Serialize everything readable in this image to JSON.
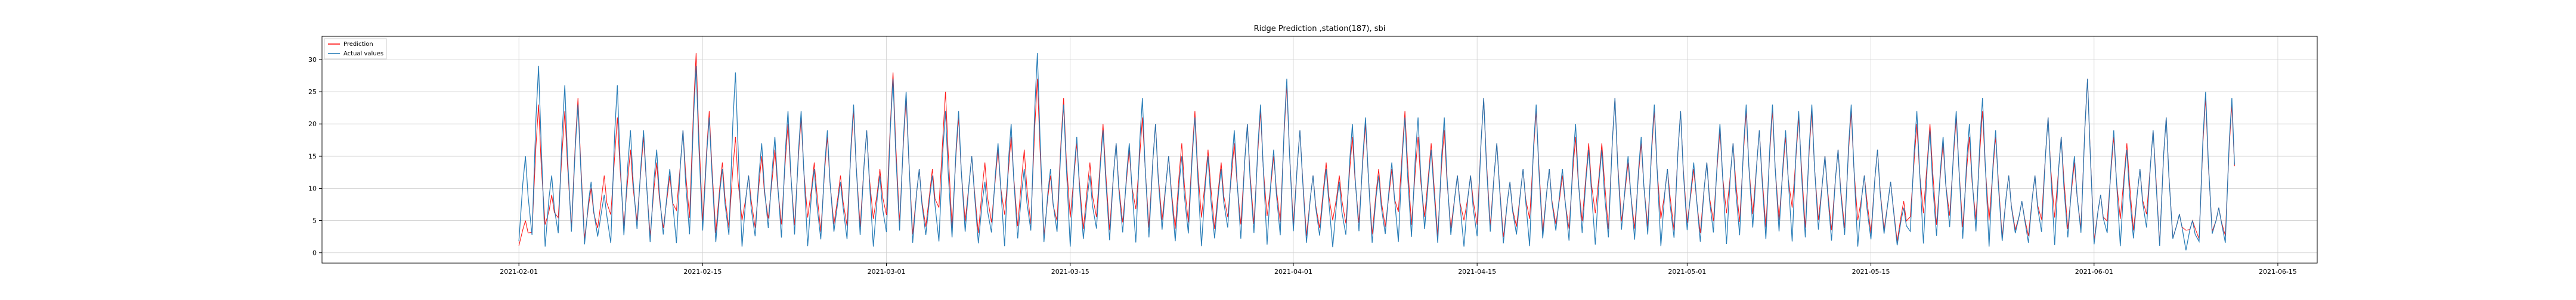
{
  "chart_data": {
    "type": "line",
    "title": "Ridge Prediction ,station(187), sbi",
    "xlabel": "",
    "ylabel": "",
    "xlim": [
      "2021-01-17",
      "2021-06-18"
    ],
    "ylim": [
      -1.6,
      33.6
    ],
    "grid": true,
    "legend_placement": "top-left",
    "x_ticks": [
      "2021-02-01",
      "2021-02-15",
      "2021-03-01",
      "2021-03-15",
      "2021-04-01",
      "2021-04-15",
      "2021-05-01",
      "2021-05-15",
      "2021-06-01",
      "2021-06-15"
    ],
    "y_ticks": [
      0,
      5,
      10,
      15,
      20,
      25,
      30
    ],
    "x_start": "2021-02-01",
    "x_end": "2021-06-11",
    "series": [
      {
        "name": "Prediction",
        "color": "#ff0000",
        "daily_peaks": [
          5,
          23,
          9,
          22,
          24,
          10,
          12,
          21,
          16,
          18,
          14,
          12,
          19,
          31,
          22,
          14,
          18,
          12,
          15,
          16,
          20,
          21,
          14,
          18,
          12,
          22,
          19,
          13,
          28,
          24,
          13,
          13,
          25,
          21,
          15,
          14,
          16,
          18,
          16,
          27,
          12,
          24,
          17,
          14,
          20,
          17,
          16,
          21,
          20,
          15,
          17,
          22,
          16,
          14,
          17,
          20,
          22,
          15,
          26,
          19,
          12,
          14,
          12,
          18,
          20,
          13,
          13,
          22,
          18,
          17,
          19,
          12,
          12,
          24,
          17,
          11,
          13,
          22,
          13,
          12,
          18,
          17,
          17,
          24,
          14,
          17,
          22,
          13,
          22,
          13,
          14,
          19,
          17,
          22,
          19,
          22,
          18,
          21,
          22,
          15,
          16,
          22,
          12,
          16,
          11,
          8,
          20,
          20,
          17,
          21,
          18,
          22,
          18,
          12,
          8,
          12,
          21,
          18,
          14,
          27,
          9,
          18,
          17,
          13,
          19,
          21,
          6,
          5,
          24,
          7,
          23,
          12,
          8,
          23,
          23,
          17,
          5,
          24,
          15,
          12,
          17,
          12,
          28,
          14,
          26,
          13,
          21,
          21,
          14,
          12,
          21,
          11,
          13,
          26,
          12,
          16,
          11,
          12,
          24,
          20,
          5,
          26,
          17,
          18,
          13,
          13,
          21,
          14,
          26,
          12,
          15,
          7,
          12,
          16,
          18,
          24,
          14,
          17,
          19,
          18,
          10,
          12,
          15,
          17,
          15,
          18,
          16,
          19,
          17,
          16,
          20,
          17,
          21,
          15,
          22,
          17,
          15,
          17,
          20,
          17,
          17,
          19,
          19,
          20,
          20,
          17,
          17,
          19,
          20,
          13,
          17,
          23,
          18,
          20,
          27,
          14,
          12,
          20,
          20,
          17,
          13,
          13,
          10,
          23,
          12,
          10,
          6,
          21,
          17,
          10,
          27,
          9
        ]
      },
      {
        "name": "Actual values",
        "color": "#1f77b4",
        "daily_peaks": [
          15,
          29,
          12,
          26,
          23,
          11,
          9,
          26,
          19,
          19,
          16,
          13,
          19,
          29,
          21,
          13,
          28,
          12,
          17,
          18,
          22,
          22,
          13,
          19,
          11,
          23,
          19,
          12,
          27,
          25,
          13,
          12,
          22,
          22,
          15,
          11,
          17,
          20,
          13,
          31,
          13,
          23,
          18,
          12,
          19,
          17,
          17,
          24,
          20,
          15,
          15,
          21,
          15,
          13,
          19,
          20,
          23,
          16,
          27,
          19,
          12,
          13,
          11,
          20,
          21,
          12,
          14,
          21,
          21,
          16,
          21,
          12,
          12,
          24,
          17,
          11,
          13,
          23,
          13,
          13,
          20,
          16,
          16,
          24,
          15,
          18,
          23,
          13,
          22,
          14,
          14,
          20,
          17,
          23,
          19,
          23,
          19,
          22,
          23,
          15,
          16,
          23,
          12,
          16,
          11,
          7,
          22,
          19,
          18,
          22,
          20,
          24,
          19,
          12,
          8,
          12,
          21,
          18,
          15,
          27,
          9,
          19,
          16,
          13,
          19,
          21,
          6,
          5,
          25,
          7,
          24,
          12,
          8,
          24,
          24,
          17,
          5,
          25,
          16,
          12,
          17,
          12,
          28,
          15,
          26,
          14,
          21,
          23,
          13,
          12,
          23,
          12,
          14,
          27,
          12,
          16,
          11,
          12,
          25,
          20,
          5,
          28,
          17,
          19,
          13,
          14,
          21,
          14,
          28,
          12,
          16,
          7,
          12,
          16,
          18,
          24,
          15,
          17,
          20,
          19,
          10,
          12,
          15,
          17,
          15,
          18,
          16,
          19,
          17,
          16,
          21,
          18,
          21,
          15,
          22,
          17,
          15,
          17,
          20,
          17,
          17,
          19,
          19,
          20,
          20,
          17,
          17,
          19,
          20,
          13,
          17,
          23,
          18,
          20,
          28,
          14,
          12,
          20,
          20,
          17,
          13,
          13,
          10,
          24,
          12,
          10,
          6,
          22,
          17,
          10,
          27,
          9
        ]
      }
    ]
  }
}
